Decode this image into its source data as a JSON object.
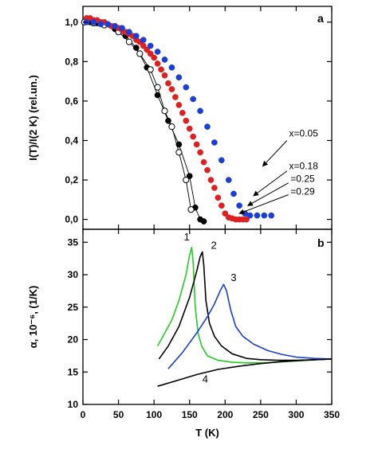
{
  "chart_data": [
    {
      "panel": "a",
      "type": "scatter",
      "ylabel": "I(T)/I(2 K) (rel.un.)",
      "xlabel": "",
      "xlim": [
        0,
        350
      ],
      "ylim": [
        -0.05,
        1.08
      ],
      "xticks": [
        0,
        50,
        100,
        150,
        200,
        250,
        300,
        350
      ],
      "yticks": [
        0.0,
        0.2,
        0.4,
        0.6,
        0.8,
        1.0
      ],
      "ytick_labels": [
        "0,0",
        "0,2",
        "0,4",
        "0,6",
        "0,8",
        "1,0"
      ],
      "grid": false,
      "annotations": [
        "x=0.05",
        "x=0.18",
        "=0.25",
        "=0.29"
      ],
      "series": [
        {
          "marker": "filled-circle",
          "color": "#000000",
          "x": [
            2,
            10,
            20,
            30,
            45,
            60,
            75,
            90,
            105,
            120,
            135,
            150,
            158,
            165,
            170
          ],
          "y": [
            1.0,
            1.0,
            0.995,
            0.985,
            0.965,
            0.93,
            0.87,
            0.77,
            0.63,
            0.5,
            0.38,
            0.22,
            0.06,
            0.0,
            -0.01
          ]
        },
        {
          "marker": "open-circle",
          "color": "#000000",
          "x": [
            2,
            15,
            30,
            50,
            65,
            80,
            95,
            105,
            115,
            125,
            135,
            145,
            152
          ],
          "y": [
            1.0,
            0.995,
            0.985,
            0.95,
            0.9,
            0.84,
            0.76,
            0.67,
            0.55,
            0.47,
            0.34,
            0.2,
            0.05
          ]
        },
        {
          "marker": "filled-circle",
          "color": "#e02020",
          "x": [
            5,
            10,
            15,
            20,
            25,
            30,
            35,
            40,
            45,
            50,
            55,
            60,
            65,
            70,
            75,
            80,
            85,
            90,
            95,
            100,
            105,
            110,
            115,
            120,
            125,
            130,
            135,
            140,
            145,
            150,
            155,
            160,
            165,
            170,
            175,
            180,
            185,
            190,
            195,
            200,
            205,
            210,
            215,
            220,
            225,
            230
          ],
          "y": [
            1.02,
            1.02,
            1.01,
            1.01,
            1.0,
            1.0,
            0.99,
            0.98,
            0.98,
            0.97,
            0.96,
            0.95,
            0.94,
            0.93,
            0.91,
            0.9,
            0.88,
            0.86,
            0.84,
            0.82,
            0.79,
            0.76,
            0.73,
            0.69,
            0.66,
            0.62,
            0.58,
            0.54,
            0.5,
            0.46,
            0.42,
            0.38,
            0.34,
            0.29,
            0.25,
            0.2,
            0.16,
            0.11,
            0.07,
            0.03,
            0.01,
            0.005,
            0.0,
            0.0,
            0.0,
            0.0
          ]
        },
        {
          "marker": "filled-circle",
          "color": "#1a3fd6",
          "x": [
            5,
            15,
            25,
            35,
            45,
            55,
            65,
            75,
            85,
            95,
            105,
            115,
            125,
            135,
            145,
            155,
            165,
            175,
            185,
            195,
            205,
            212,
            220,
            228,
            235,
            245,
            255,
            265
          ],
          "y": [
            1.0,
            1.0,
            0.99,
            0.99,
            0.98,
            0.97,
            0.95,
            0.93,
            0.91,
            0.88,
            0.85,
            0.81,
            0.77,
            0.72,
            0.67,
            0.61,
            0.55,
            0.47,
            0.39,
            0.3,
            0.2,
            0.13,
            0.07,
            0.03,
            0.02,
            0.02,
            0.02,
            0.02
          ]
        }
      ]
    },
    {
      "panel": "b",
      "type": "line",
      "ylabel": "α, 10⁻⁶, (1/K)",
      "xlabel": "T (K)",
      "xlim": [
        0,
        350
      ],
      "ylim": [
        10,
        37
      ],
      "xticks": [
        0,
        50,
        100,
        150,
        200,
        250,
        300,
        350
      ],
      "yticks": [
        10,
        15,
        20,
        25,
        30,
        35
      ],
      "grid": false,
      "curve_labels": [
        "1",
        "2",
        "3",
        "4"
      ],
      "series": [
        {
          "name": "1",
          "color": "#22cc22",
          "x": [
            105,
            115,
            125,
            135,
            145,
            150,
            153,
            155,
            158,
            162,
            167,
            175,
            190,
            210,
            230,
            250,
            270,
            300,
            330,
            350
          ],
          "y": [
            19,
            21,
            23,
            26,
            30,
            33,
            34.2,
            32,
            25,
            21,
            19,
            17.5,
            16.8,
            16.5,
            16.4,
            16.4,
            16.5,
            16.7,
            16.9,
            17
          ]
        },
        {
          "name": "2",
          "color": "#000000",
          "x": [
            107,
            120,
            135,
            150,
            160,
            165,
            168,
            170,
            173,
            178,
            185,
            195,
            210,
            230,
            250,
            275,
            300,
            325,
            350
          ],
          "y": [
            17,
            19,
            22,
            26.5,
            30.5,
            32.8,
            33.5,
            31.5,
            26,
            22.5,
            20.5,
            19,
            17.8,
            17.1,
            16.9,
            16.8,
            16.8,
            16.9,
            17
          ]
        },
        {
          "name": "3",
          "color": "#1a3fd6",
          "x": [
            120,
            140,
            160,
            175,
            185,
            193,
            198,
            202,
            208,
            215,
            225,
            240,
            260,
            280,
            300,
            325,
            350
          ],
          "y": [
            15.5,
            18,
            21,
            23.5,
            25.5,
            27.5,
            28.5,
            27.5,
            24.5,
            22,
            20.5,
            19.3,
            18.3,
            17.7,
            17.3,
            17.1,
            17
          ]
        },
        {
          "name": "4",
          "color": "#000000",
          "x": [
            105,
            130,
            160,
            190,
            220,
            250,
            280,
            310,
            350
          ],
          "y": [
            12.8,
            13.6,
            14.6,
            15.4,
            15.9,
            16.3,
            16.6,
            16.8,
            17
          ]
        }
      ]
    }
  ],
  "panel_letters": {
    "a": "a",
    "b": "b"
  }
}
